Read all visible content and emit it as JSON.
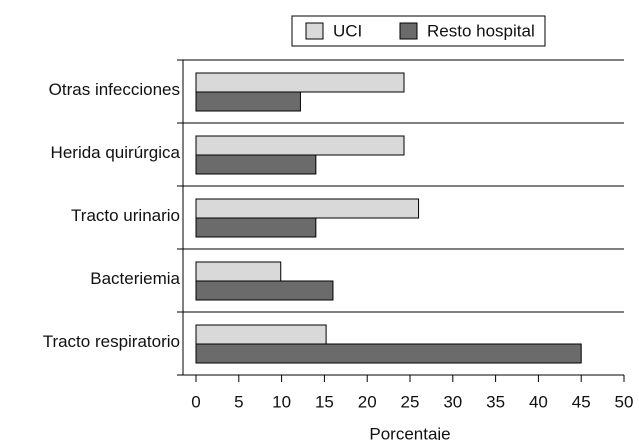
{
  "chart_data": {
    "type": "hbar",
    "xlabel": "Porcentaje",
    "categories": [
      "Otras infecciones",
      "Herida quirúrgica",
      "Tracto urinario",
      "Bacteriemia",
      "Tracto respiratorio"
    ],
    "series": [
      {
        "name": "UCI",
        "color": "#d9d9d9",
        "values": [
          24.3,
          24.3,
          26,
          9.9,
          15.2
        ]
      },
      {
        "name": "Resto hospital",
        "color": "#6b6b6b",
        "values": [
          12.2,
          14,
          14,
          16,
          45
        ]
      }
    ],
    "xlim": [
      0,
      50
    ],
    "xticks": [
      0,
      5,
      10,
      15,
      20,
      25,
      30,
      35,
      40,
      45,
      50
    ]
  }
}
